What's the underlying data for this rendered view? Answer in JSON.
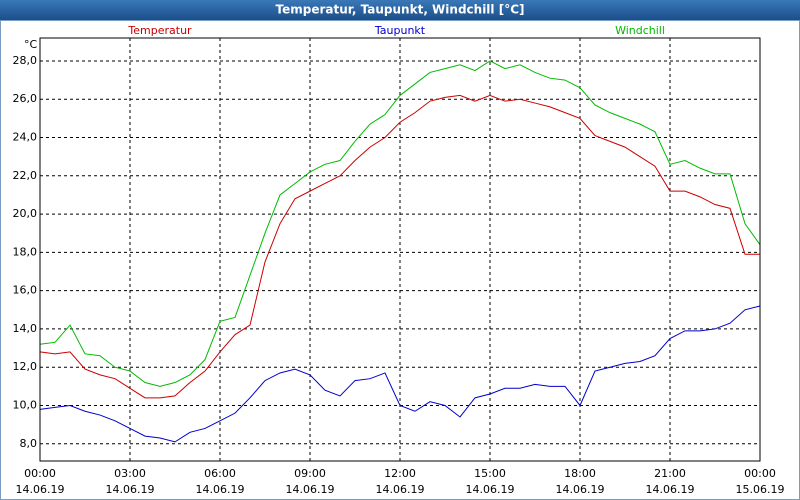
{
  "chart_data": {
    "type": "line",
    "title": "Temperatur, Taupunkt, Windchill [°C]",
    "y_unit": "°C",
    "x": [
      0,
      0.5,
      1,
      1.5,
      2,
      2.5,
      3,
      3.5,
      4,
      4.5,
      5,
      5.5,
      6,
      6.5,
      7,
      7.5,
      8,
      8.5,
      9,
      9.5,
      10,
      10.5,
      11,
      11.5,
      12,
      12.5,
      13,
      13.5,
      14,
      14.5,
      15,
      15.5,
      16,
      16.5,
      17,
      17.5,
      18,
      18.5,
      19,
      19.5,
      20,
      20.5,
      21,
      21.5,
      22,
      22.5,
      23,
      23.5,
      24
    ],
    "xlim": [
      0,
      24
    ],
    "xticks": [
      {
        "value": 0,
        "label": [
          "00:00",
          "14.06.19"
        ]
      },
      {
        "value": 3,
        "label": [
          "03:00",
          "14.06.19"
        ]
      },
      {
        "value": 6,
        "label": [
          "06:00",
          "14.06.19"
        ]
      },
      {
        "value": 9,
        "label": [
          "09:00",
          "14.06.19"
        ]
      },
      {
        "value": 12,
        "label": [
          "12:00",
          "14.06.19"
        ]
      },
      {
        "value": 15,
        "label": [
          "15:00",
          "14.06.19"
        ]
      },
      {
        "value": 18,
        "label": [
          "18:00",
          "14.06.19"
        ]
      },
      {
        "value": 21,
        "label": [
          "21:00",
          "14.06.19"
        ]
      },
      {
        "value": 24,
        "label": [
          "00:00",
          "15.06.19"
        ]
      }
    ],
    "ylim": [
      7.1,
      29.2
    ],
    "yticks": [
      {
        "value": 8,
        "label": "8,0"
      },
      {
        "value": 10,
        "label": "10,0"
      },
      {
        "value": 12,
        "label": "12,0"
      },
      {
        "value": 14,
        "label": "14,0"
      },
      {
        "value": 16,
        "label": "16,0"
      },
      {
        "value": 18,
        "label": "18,0"
      },
      {
        "value": 20,
        "label": "20,0"
      },
      {
        "value": 22,
        "label": "22,0"
      },
      {
        "value": 24,
        "label": "24,0"
      },
      {
        "value": 26,
        "label": "26,0"
      },
      {
        "value": 28,
        "label": "28,0"
      }
    ],
    "grid": true,
    "series": [
      {
        "name": "Temperatur",
        "color": "#cc0000",
        "values": [
          12.8,
          12.7,
          12.8,
          11.9,
          11.6,
          11.4,
          10.9,
          10.4,
          10.4,
          10.5,
          11.2,
          11.8,
          12.8,
          13.7,
          14.2,
          17.5,
          19.5,
          20.8,
          21.2,
          21.6,
          22.0,
          22.8,
          23.5,
          24.0,
          24.8,
          25.3,
          25.9,
          26.1,
          26.2,
          25.9,
          26.2,
          25.9,
          26.0,
          25.8,
          25.6,
          25.3,
          25.0,
          24.1,
          23.8,
          23.5,
          23.0,
          22.5,
          21.2,
          21.2,
          20.9,
          20.5,
          20.3,
          17.9,
          17.9
        ]
      },
      {
        "name": "Taupunkt",
        "color": "#0000cc",
        "values": [
          9.8,
          9.9,
          10.0,
          9.7,
          9.5,
          9.2,
          8.8,
          8.4,
          8.3,
          8.1,
          8.6,
          8.8,
          9.2,
          9.6,
          10.4,
          11.3,
          11.7,
          11.9,
          11.6,
          10.8,
          10.5,
          11.3,
          11.4,
          11.7,
          10.0,
          9.7,
          10.2,
          10.0,
          9.4,
          10.4,
          10.6,
          10.9,
          10.9,
          11.1,
          11.0,
          11.0,
          10.0,
          11.8,
          12.0,
          12.2,
          12.3,
          12.6,
          13.5,
          13.9,
          13.9,
          14.0,
          14.3,
          15.0,
          15.2
        ]
      },
      {
        "name": "Windchill",
        "color": "#00bb00",
        "values": [
          13.2,
          13.3,
          14.2,
          12.7,
          12.6,
          12.0,
          11.8,
          11.2,
          11.0,
          11.2,
          11.6,
          12.4,
          14.4,
          14.6,
          16.8,
          19.0,
          21.0,
          21.6,
          22.2,
          22.6,
          22.8,
          23.8,
          24.7,
          25.2,
          26.2,
          26.8,
          27.4,
          27.6,
          27.8,
          27.5,
          28.0,
          27.6,
          27.8,
          27.4,
          27.1,
          27.0,
          26.6,
          25.7,
          25.3,
          25.0,
          24.7,
          24.3,
          22.6,
          22.8,
          22.4,
          22.1,
          22.1,
          19.5,
          18.4
        ]
      }
    ]
  }
}
